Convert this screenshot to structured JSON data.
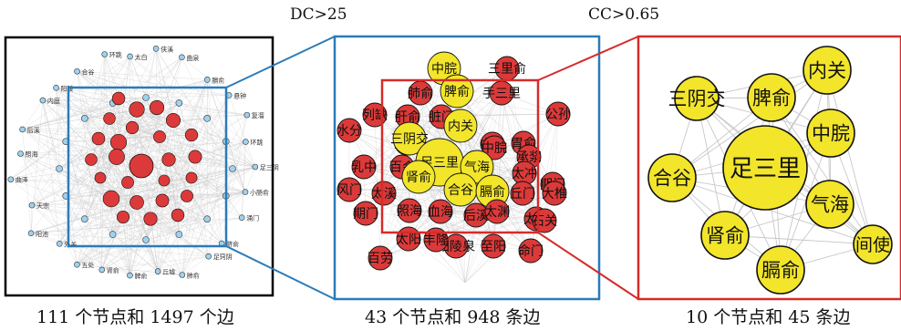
{
  "thresholds": {
    "dc": "DC>25",
    "cc": "CC>0.65"
  },
  "captions": {
    "panel1": "111 个节点和 1497 个边",
    "panel2": "43 个节点和 948 条边",
    "panel3": "10 个节点和 45 条边"
  },
  "colors": {
    "frame_black": "#000000",
    "frame_blue": "#2b7bb9",
    "frame_red": "#d52b2b",
    "node_red": "#dc3a3a",
    "node_blue": "#9ed2f0",
    "node_yellow": "#f2e52a",
    "edge_gray": "#c8c8c8"
  },
  "panel1": {
    "outer_labels": [
      "足三阴",
      "小肠俞",
      "涌门",
      "脐俞",
      "足窍阴",
      "肺俞",
      "丘墟",
      "脾俞",
      "肾俞",
      "五处",
      "外关",
      "阳池",
      "天宗",
      "曲泽",
      "照海",
      "后溪",
      "内庭",
      "阳陵",
      "合谷",
      "环跳",
      "太白",
      "侠溪",
      "曲泉",
      "膈俞",
      "悬钟",
      "复溜",
      "环跳"
    ]
  },
  "panel2": {
    "labels": [
      "中脘",
      "三里俞",
      "肺俞",
      "脾俞",
      "手三里",
      "列缺",
      "肝俞",
      "脏门",
      "公孙",
      "水分",
      "内关",
      "天枢",
      "中极",
      "三阴交",
      "中脘",
      "胃俞",
      "足三里",
      "气海",
      "承浆",
      "乳中",
      "百会",
      "太冲",
      "期门",
      "风门",
      "肾俞",
      "太溪",
      "合谷",
      "膈俞",
      "丘门",
      "大椎",
      "期门",
      "照海",
      "血海",
      "后溪",
      "太渊",
      "太陵",
      "太阳",
      "阳陵泉",
      "至阳",
      "命门",
      "石关",
      "丰隆",
      "百劳"
    ]
  },
  "panel3": {
    "nodes": [
      {
        "label": "内关",
        "size": "medium"
      },
      {
        "label": "三阴交",
        "size": "medium"
      },
      {
        "label": "脾俞",
        "size": "medium"
      },
      {
        "label": "中脘",
        "size": "medium"
      },
      {
        "label": "足三里",
        "size": "large"
      },
      {
        "label": "合谷",
        "size": "medium"
      },
      {
        "label": "气海",
        "size": "medium"
      },
      {
        "label": "肾俞",
        "size": "medium"
      },
      {
        "label": "间使",
        "size": "small"
      },
      {
        "label": "膈俞",
        "size": "medium"
      }
    ]
  }
}
